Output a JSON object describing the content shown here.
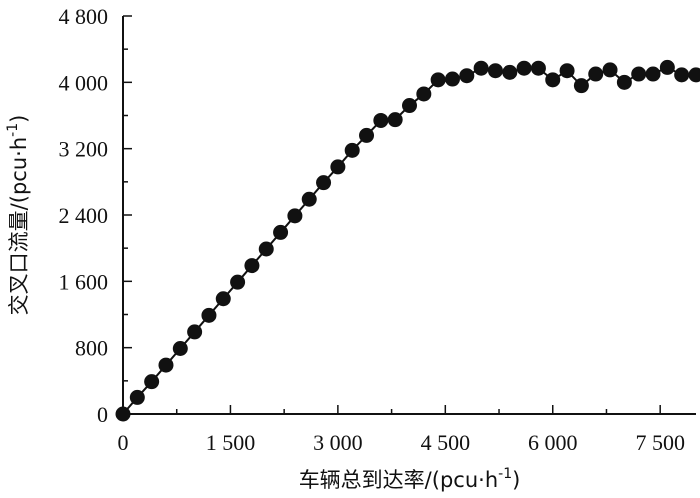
{
  "chart_data": {
    "type": "scatter",
    "xlabel_main": "车辆总到达率/(pcu·h",
    "xlabel_sup": "-1",
    "xlabel_tail": ")",
    "ylabel_main": "交叉口流量/(pcu·h",
    "ylabel_sup": "-1",
    "ylabel_tail": ")",
    "xlim": [
      0,
      8000
    ],
    "ylim": [
      0,
      4800
    ],
    "x_ticks": [
      0,
      1500,
      3000,
      4500,
      6000,
      7500
    ],
    "x_tick_labels": [
      "0",
      "1 500",
      "3 000",
      "4 500",
      "6 000",
      "7 500"
    ],
    "y_ticks": [
      0,
      800,
      1600,
      2400,
      3200,
      4000,
      4800
    ],
    "y_tick_labels": [
      "0",
      "800",
      "1 600",
      "2 400",
      "3 200",
      "4 000",
      "4 800"
    ],
    "grid": false,
    "marker": "filled-circle",
    "series": [
      {
        "points": [
          [
            0,
            0
          ],
          [
            200,
            200
          ],
          [
            400,
            390
          ],
          [
            600,
            590
          ],
          [
            800,
            790
          ],
          [
            1000,
            990
          ],
          [
            1200,
            1190
          ],
          [
            1400,
            1390
          ],
          [
            1600,
            1590
          ],
          [
            1800,
            1790
          ],
          [
            2000,
            1990
          ],
          [
            2200,
            2190
          ],
          [
            2400,
            2390
          ],
          [
            2600,
            2590
          ],
          [
            2800,
            2790
          ],
          [
            3000,
            2980
          ],
          [
            3200,
            3180
          ],
          [
            3400,
            3360
          ],
          [
            3600,
            3540
          ],
          [
            3800,
            3550
          ],
          [
            4000,
            3720
          ],
          [
            4200,
            3860
          ],
          [
            4400,
            4030
          ],
          [
            4600,
            4040
          ],
          [
            4800,
            4080
          ],
          [
            5000,
            4170
          ],
          [
            5200,
            4140
          ],
          [
            5400,
            4120
          ],
          [
            5600,
            4170
          ],
          [
            5800,
            4170
          ],
          [
            6000,
            4030
          ],
          [
            6200,
            4140
          ],
          [
            6400,
            3960
          ],
          [
            6600,
            4100
          ],
          [
            6800,
            4150
          ],
          [
            7000,
            4000
          ],
          [
            7200,
            4100
          ],
          [
            7400,
            4100
          ],
          [
            7600,
            4180
          ],
          [
            7800,
            4090
          ],
          [
            8000,
            4090
          ]
        ]
      }
    ]
  }
}
